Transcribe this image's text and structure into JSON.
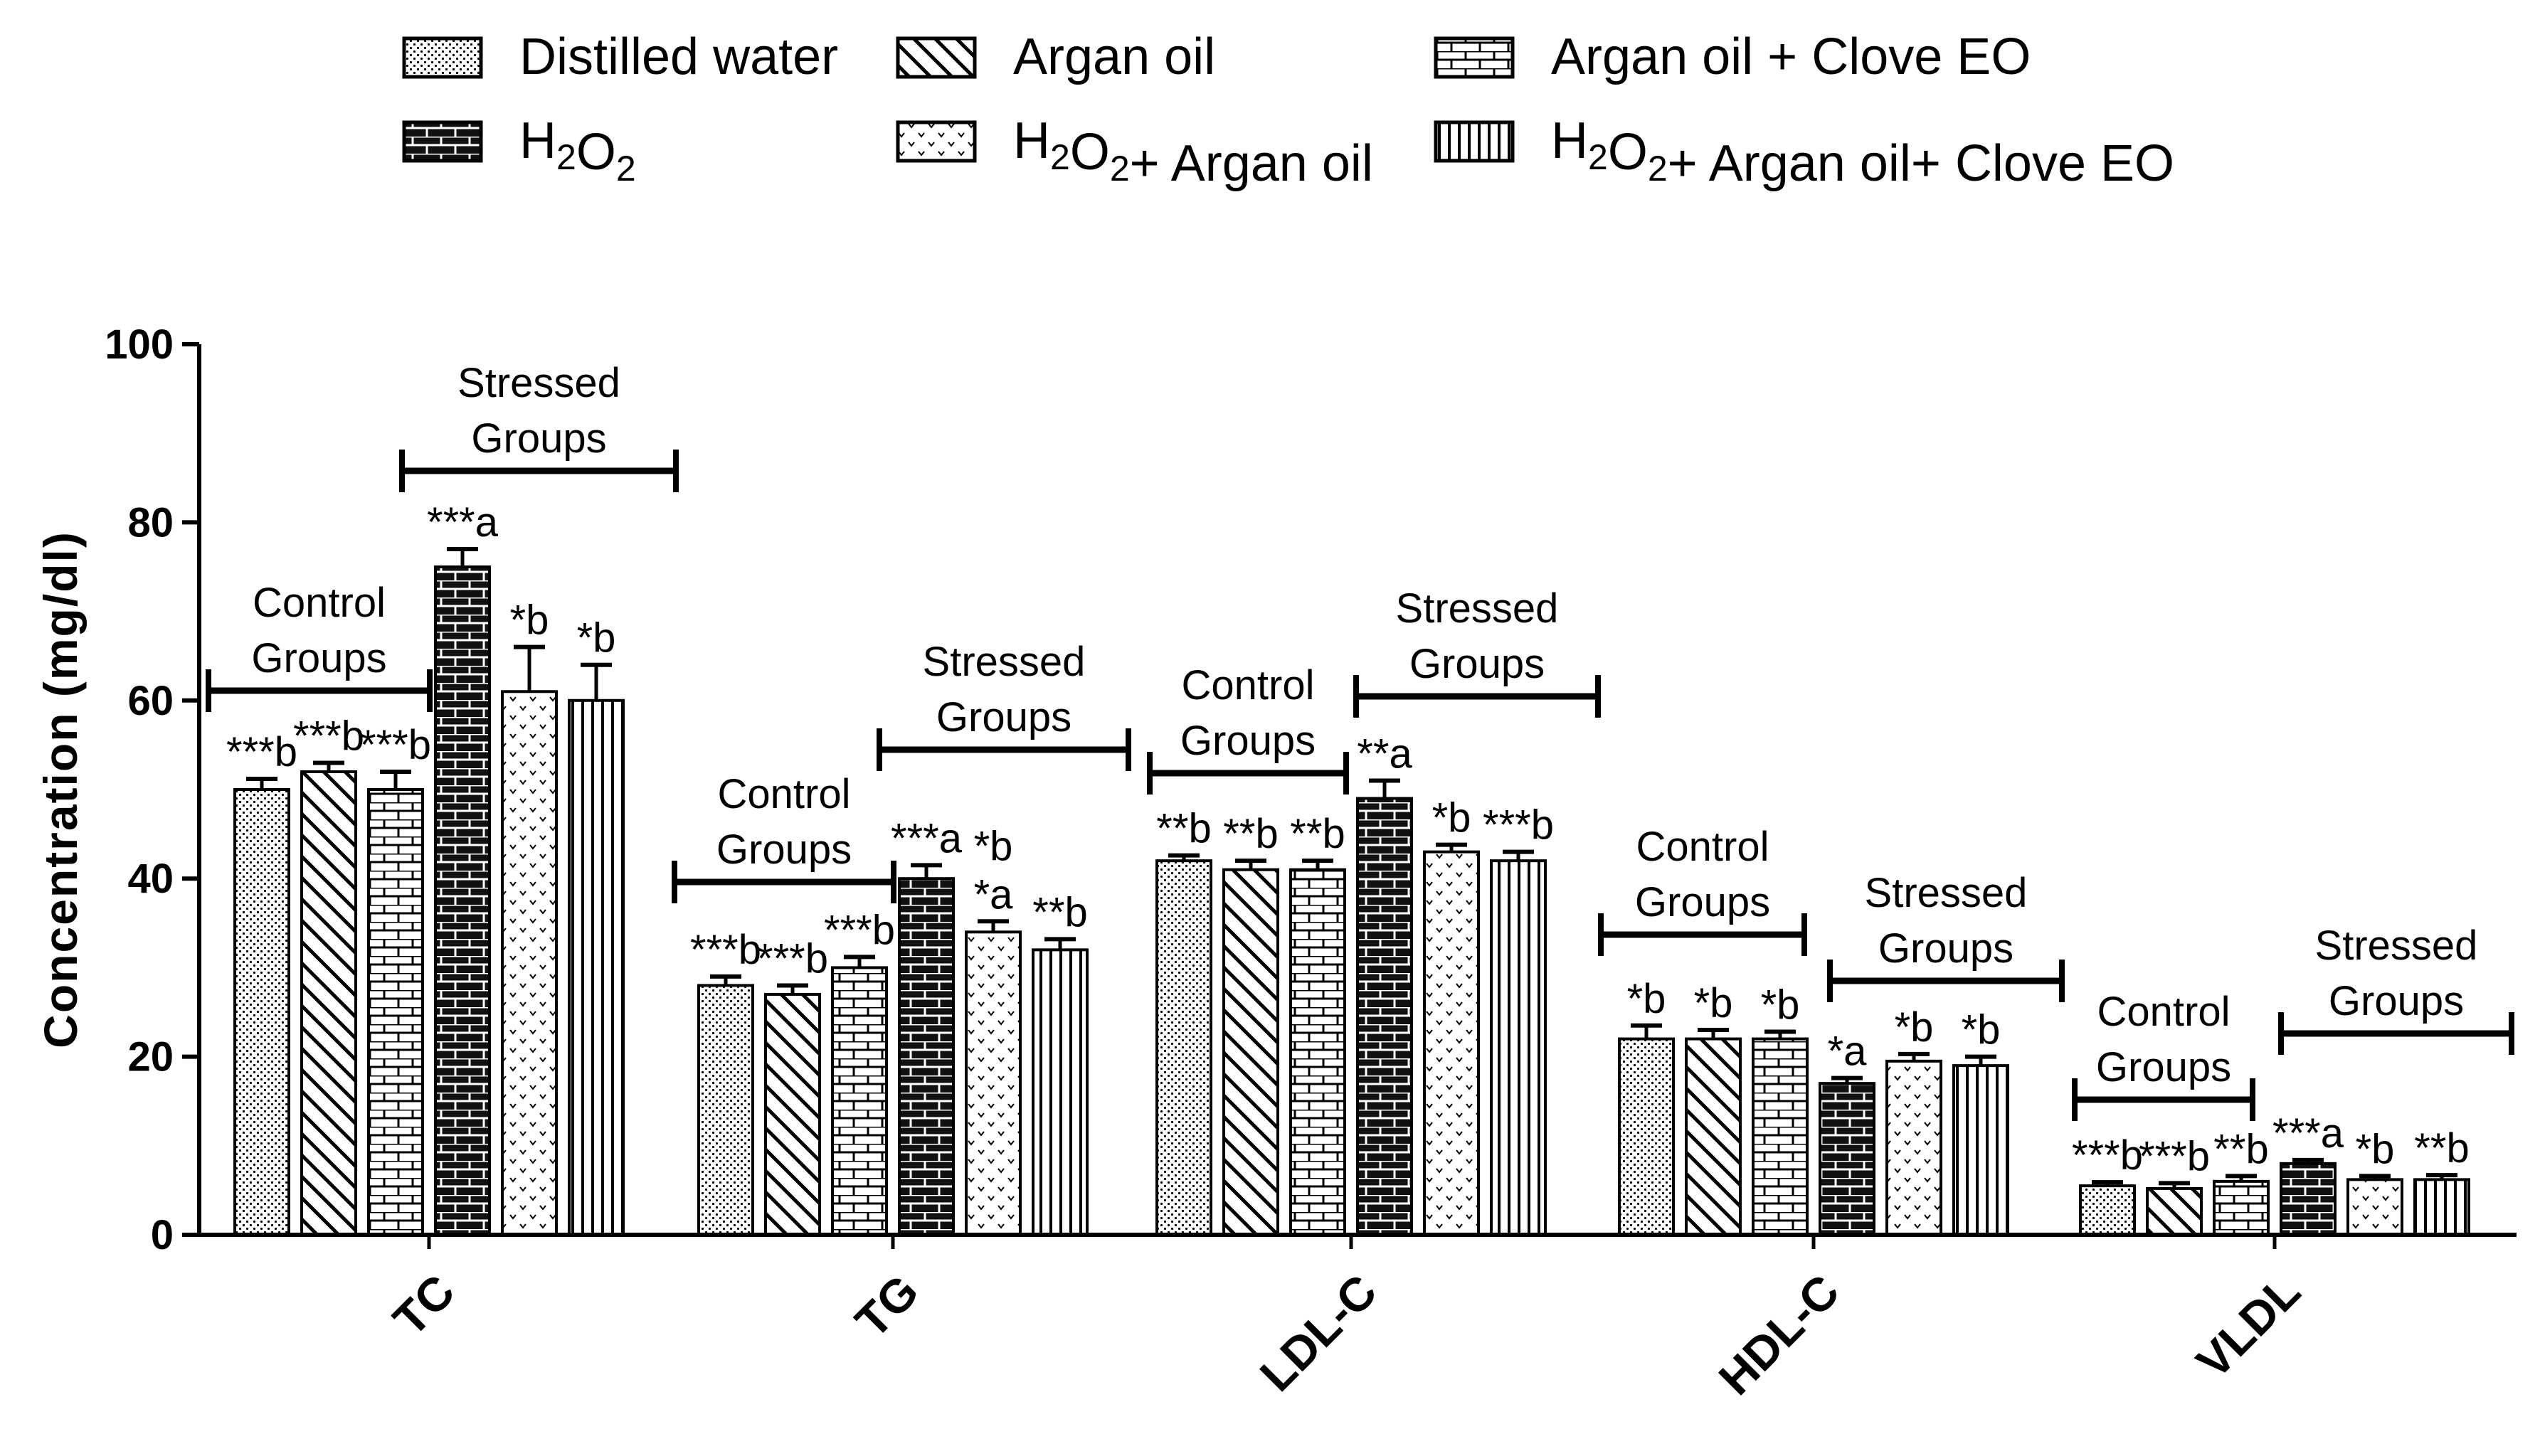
{
  "chart_data": {
    "type": "bar",
    "title": "",
    "ylabel": "Concentration (mg/dl)",
    "xlabel": "",
    "ylim": [
      0,
      100
    ],
    "yticks": [
      0,
      20,
      40,
      60,
      80,
      100
    ],
    "categories": [
      "TC",
      "TG",
      "LDL-C",
      "HDL-C",
      "VLDL"
    ],
    "series": [
      {
        "name": "Distilled water",
        "pattern": "dots",
        "values": [
          50,
          28,
          42,
          22,
          5.5
        ],
        "errors": [
          1.2,
          1.0,
          0.6,
          1.5,
          0.4
        ],
        "labels": [
          "***b",
          "***b",
          "**b",
          "*b",
          "***b"
        ]
      },
      {
        "name": "Argan oil",
        "pattern": "diagonal",
        "values": [
          52,
          27,
          41,
          22,
          5.2
        ],
        "errors": [
          1.0,
          1.0,
          1.0,
          1.0,
          0.6
        ],
        "labels": [
          "***b",
          "***b",
          "**b",
          "*b",
          "***b"
        ]
      },
      {
        "name": "Argan oil + Clove EO",
        "pattern": "bricks-white",
        "values": [
          50,
          30,
          41,
          22,
          6.0
        ],
        "errors": [
          2.0,
          1.2,
          1.0,
          0.8,
          0.6
        ],
        "labels": [
          "***b",
          "***b",
          "**b",
          "*b",
          "**b"
        ]
      },
      {
        "name": "H2O2",
        "pattern": "bricks-dark",
        "values": [
          75,
          40,
          49,
          17,
          8
        ],
        "errors": [
          2.0,
          1.5,
          2.0,
          0.6,
          0.4
        ],
        "labels": [
          "***a",
          "***a",
          "**a",
          "*a",
          "***a"
        ]
      },
      {
        "name": "H2O2+ Argan oil",
        "pattern": "chevrons",
        "values": [
          61,
          34,
          43,
          19.5,
          6.2
        ],
        "errors": [
          5.0,
          1.2,
          0.8,
          0.8,
          0.4
        ],
        "labels": [
          "*b",
          "*a",
          "*b",
          "*b",
          "*b"
        ]
      },
      {
        "name": "H2O2+ Argan oil+ Clove EO",
        "pattern": "vertical",
        "values": [
          60,
          32,
          42,
          19,
          6.2
        ],
        "errors": [
          4.0,
          1.2,
          1.0,
          1.0,
          0.5
        ],
        "labels": [
          "*b",
          "**b",
          "***b",
          "*b",
          "**b"
        ]
      }
    ],
    "extra_annotations": [
      {
        "category": "TG",
        "series": 4,
        "text": "*b"
      }
    ],
    "group_brackets": {
      "control_label": [
        "Control",
        "Groups"
      ],
      "stressed_label": [
        "Stressed",
        "Groups"
      ]
    },
    "legend": {
      "position": "top",
      "columns": 3,
      "entries": [
        {
          "main": "Distilled water"
        },
        {
          "main": "H",
          "sub1": "2",
          "mid": "O",
          "sub2": "2",
          "tail": ""
        },
        {
          "main": "Argan oil"
        },
        {
          "main": "H",
          "sub1": "2",
          "mid": "O",
          "sub2": "2",
          "tail": "+ Argan oil"
        },
        {
          "main": "Argan oil + Clove EO"
        },
        {
          "main": "H",
          "sub1": "2",
          "mid": "O",
          "sub2": "2",
          "tail": "+ Argan oil+ Clove EO"
        }
      ]
    }
  }
}
